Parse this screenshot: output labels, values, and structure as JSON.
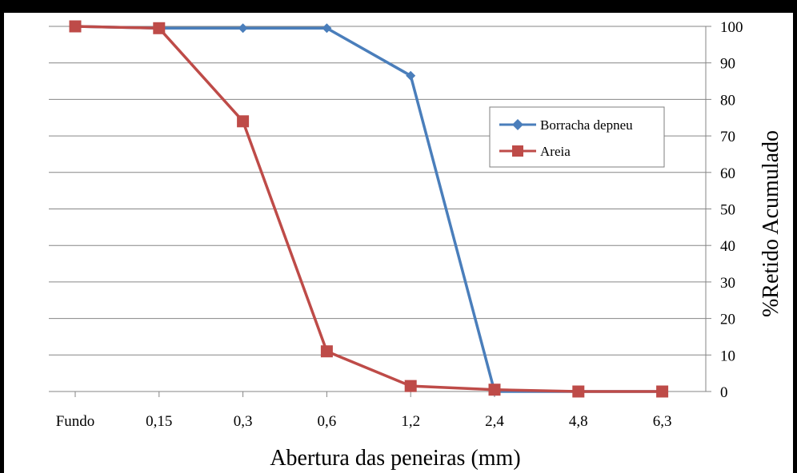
{
  "chart_data": {
    "type": "line",
    "categories": [
      "Fundo",
      "0,15",
      "0,3",
      "0,6",
      "1,2",
      "2,4",
      "4,8",
      "6,3"
    ],
    "xlabel": "Abertura das peneiras (mm)",
    "ylabel": "%Retido Acumulado",
    "ylim": [
      0,
      100
    ],
    "yticks": [
      "0",
      "10",
      "20",
      "30",
      "40",
      "50",
      "60",
      "70",
      "80",
      "90",
      "100"
    ],
    "grid": true,
    "legend_position": "right",
    "series": [
      {
        "name": "Borracha depneu",
        "marker": "diamond",
        "color": "#4a7ebb",
        "values": [
          100,
          99.5,
          99.5,
          99.5,
          86.5,
          0,
          0,
          0
        ]
      },
      {
        "name": "Areia",
        "marker": "square",
        "color": "#be4b48",
        "values": [
          100,
          99.5,
          74,
          11,
          1.5,
          0.5,
          0,
          0
        ]
      }
    ]
  }
}
